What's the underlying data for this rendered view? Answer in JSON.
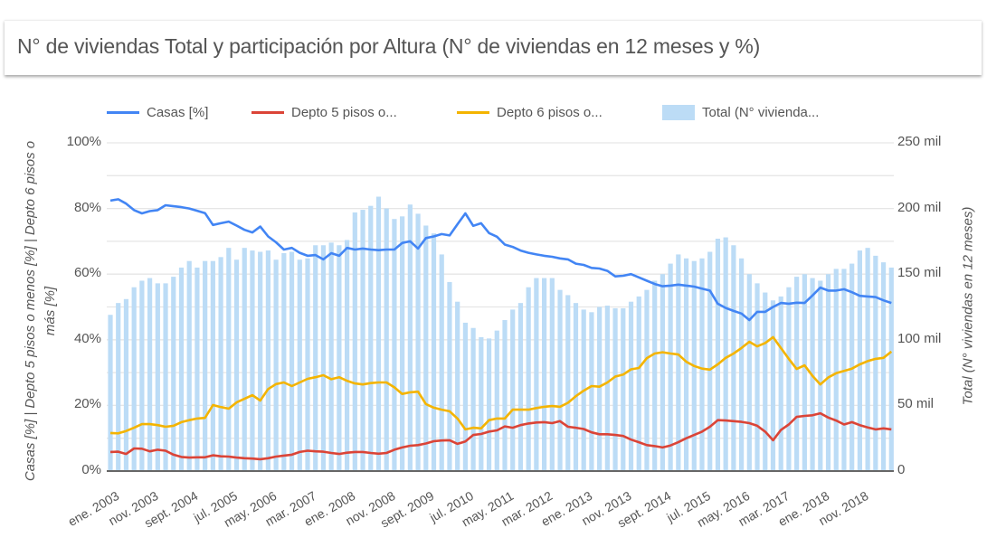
{
  "header": {
    "title": "N° de viviendas Total y participación por Altura  (N° de viviendas en 12 meses y %)"
  },
  "legend": [
    {
      "label": "Casas [%]",
      "color": "#4285f4",
      "kind": "line"
    },
    {
      "label": "Depto 5 pisos o...",
      "color": "#db4437",
      "kind": "line"
    },
    {
      "label": "Depto 6 pisos o...",
      "color": "#f4b400",
      "kind": "line"
    },
    {
      "label": "Total (N° vivienda...",
      "color": "#bcdcf6",
      "kind": "bar"
    }
  ],
  "chart_data": {
    "type": "bar+line",
    "title": "N° de viviendas Total y participación por Altura  (N° de viviendas en 12 meses y %)",
    "ylabel_left": "Casas [%] | Depto 5 pisos o menos [%] | Depto 6 pisos o más [%]",
    "ylabel_right": "Total (N° viviendas en 12 meses)",
    "ylim_left": [
      0,
      100
    ],
    "ylim_right": [
      0,
      250000
    ],
    "yticks_left": [
      "0%",
      "20%",
      "40%",
      "60%",
      "80%",
      "100%"
    ],
    "yticks_right": [
      "0",
      "50 mil",
      "100 mil",
      "150 mil",
      "200 mil",
      "250 mil"
    ],
    "xticks": [
      "ene. 2003",
      "nov. 2003",
      "sept. 2004",
      "jul. 2005",
      "may. 2006",
      "mar. 2007",
      "ene. 2008",
      "nov. 2008",
      "sept. 2009",
      "jul. 2010",
      "may. 2011",
      "mar. 2012",
      "ene. 2013",
      "nov. 2013",
      "sept. 2014",
      "jul. 2015",
      "may. 2016",
      "mar. 2017",
      "ene. 2018",
      "nov. 2018"
    ],
    "grid": true,
    "legend_position": "top",
    "x": [
      "2003-01",
      "2003-03",
      "2003-05",
      "2003-07",
      "2003-09",
      "2003-11",
      "2004-01",
      "2004-03",
      "2004-05",
      "2004-07",
      "2004-09",
      "2004-11",
      "2005-01",
      "2005-03",
      "2005-05",
      "2005-07",
      "2005-09",
      "2005-11",
      "2006-01",
      "2006-03",
      "2006-05",
      "2006-07",
      "2006-09",
      "2006-11",
      "2007-01",
      "2007-03",
      "2007-05",
      "2007-07",
      "2007-09",
      "2007-11",
      "2008-01",
      "2008-03",
      "2008-05",
      "2008-07",
      "2008-09",
      "2008-11",
      "2009-01",
      "2009-03",
      "2009-05",
      "2009-07",
      "2009-09",
      "2009-11",
      "2010-01",
      "2010-03",
      "2010-05",
      "2010-07",
      "2010-09",
      "2010-11",
      "2011-01",
      "2011-03",
      "2011-05",
      "2011-07",
      "2011-09",
      "2011-11",
      "2012-01",
      "2012-03",
      "2012-05",
      "2012-07",
      "2012-09",
      "2012-11",
      "2013-01",
      "2013-03",
      "2013-05",
      "2013-07",
      "2013-09",
      "2013-11",
      "2014-01",
      "2014-03",
      "2014-05",
      "2014-07",
      "2014-09",
      "2014-11",
      "2015-01",
      "2015-03",
      "2015-05",
      "2015-07",
      "2015-09",
      "2015-11",
      "2016-01",
      "2016-03",
      "2016-05",
      "2016-07",
      "2016-09",
      "2016-11",
      "2017-01",
      "2017-03",
      "2017-05",
      "2017-07",
      "2017-09",
      "2017-11",
      "2018-01",
      "2018-03",
      "2018-05",
      "2018-07",
      "2018-09",
      "2018-11",
      "2019-01",
      "2019-03",
      "2019-05",
      "2019-07"
    ],
    "series": [
      {
        "name": "Casas [%]",
        "axis": "left",
        "type": "line",
        "color": "#4285f4",
        "values": [
          82.4,
          82.8,
          81.5,
          79.5,
          78.5,
          79.2,
          79.5,
          81,
          80.7,
          80.4,
          80,
          79.3,
          78.6,
          75,
          75.5,
          76,
          74.8,
          73.5,
          72.7,
          74.5,
          71.5,
          69.7,
          67.5,
          68,
          66.5,
          65.6,
          65.8,
          64.5,
          66.4,
          65.6,
          68,
          67.5,
          67.8,
          67.5,
          67.3,
          67.5,
          67.5,
          69.5,
          70,
          67.8,
          71,
          71.5,
          72.2,
          71.8,
          75.2,
          78.5,
          74.7,
          75.5,
          72.5,
          71.4,
          69,
          68.3,
          67.2,
          66.5,
          66,
          65.6,
          65.3,
          64.8,
          64.5,
          63.2,
          62.8,
          61.9,
          61.7,
          61,
          59.3,
          59.5,
          60,
          59,
          58,
          57,
          56.3,
          56.5,
          56.8,
          56.5,
          56.2,
          55.6,
          55,
          51,
          49.7,
          48.8,
          48,
          46,
          48.5,
          48.5,
          50,
          51.2,
          51,
          51.3,
          51.2,
          53.5,
          55.9,
          55,
          55,
          55.4,
          54.5,
          53.4,
          53.2,
          53,
          52,
          51.2
        ]
      },
      {
        "name": "Depto 5 pisos o menos [%]",
        "axis": "left",
        "type": "line",
        "color": "#db4437",
        "values": [
          5.8,
          5.9,
          5.2,
          6.9,
          6.8,
          6,
          6.5,
          6.2,
          5,
          4.3,
          4.1,
          4.2,
          4.2,
          4.8,
          4.5,
          4.4,
          4.1,
          3.9,
          3.8,
          3.6,
          3.9,
          4.4,
          4.7,
          5,
          5.8,
          6.2,
          6,
          5.9,
          5.5,
          5.2,
          5.6,
          5.8,
          5.8,
          5.5,
          5.3,
          5.5,
          6.5,
          7.2,
          7.7,
          7.9,
          8.4,
          9.1,
          9.3,
          9.4,
          8.3,
          9,
          11,
          11.3,
          12,
          12.4,
          13.6,
          13.2,
          14,
          14.5,
          14.8,
          14.9,
          14.6,
          15.2,
          13.5,
          13.2,
          12.8,
          11.8,
          11.2,
          11.2,
          11,
          10.7,
          9.6,
          8.8,
          7.9,
          7.6,
          7.2,
          7.8,
          8.8,
          10,
          11,
          12,
          13.5,
          15.5,
          15.4,
          15.2,
          15,
          14.6,
          13.8,
          12,
          9.4,
          12.5,
          14.2,
          16.5,
          16.8,
          17,
          17.6,
          16.3,
          15.4,
          14.2,
          14.9,
          14,
          13.3,
          12.7,
          13,
          12.7
        ]
      },
      {
        "name": "Depto 6 pisos o más [%]",
        "axis": "left",
        "type": "line",
        "color": "#f4b400",
        "values": [
          11.6,
          11.5,
          12.2,
          13.2,
          14.3,
          14.3,
          14,
          13.5,
          13.8,
          14.9,
          15.5,
          16,
          16.2,
          20.1,
          19.5,
          19,
          20.9,
          22,
          23.1,
          21.5,
          25,
          26.5,
          27,
          25.9,
          27,
          28.1,
          28.6,
          29.2,
          28,
          28.6,
          27.5,
          26.7,
          26.4,
          26.8,
          27,
          27,
          25.5,
          23.5,
          24,
          24.2,
          20.4,
          19.3,
          18.7,
          18.2,
          16,
          12.7,
          13.2,
          13,
          15.5,
          16,
          16,
          18.7,
          18.7,
          18.7,
          19.2,
          19.6,
          19.8,
          19.6,
          20.8,
          22.8,
          24.5,
          25.9,
          25.7,
          27,
          28.8,
          29.4,
          31,
          31.4,
          34.4,
          35.8,
          36.2,
          35.8,
          35.5,
          33.3,
          32,
          31.2,
          30.9,
          32.5,
          34.5,
          35.8,
          37.5,
          39.4,
          38,
          39,
          40.8,
          37.5,
          34.2,
          31.1,
          32.2,
          29,
          26.4,
          28.5,
          29.8,
          30.5,
          31.2,
          32.5,
          33.5,
          34.2,
          34.5,
          36.4
        ]
      },
      {
        "name": "Total (N° viviendas en 12 meses)",
        "axis": "right",
        "type": "bar",
        "color": "#bcdcf6",
        "unit": "mil",
        "values": [
          119,
          128,
          131,
          140,
          145,
          147,
          143,
          143,
          148,
          155,
          160,
          155,
          160,
          160,
          163,
          170,
          161,
          170,
          168,
          167,
          168,
          161,
          166,
          167,
          161,
          162,
          172,
          172,
          174,
          172,
          176,
          197,
          199,
          202,
          209,
          200,
          192,
          194,
          203,
          196,
          187,
          181,
          165,
          144,
          129,
          113,
          109,
          102,
          101,
          107,
          115,
          123,
          128,
          140,
          147,
          147,
          147,
          138,
          134,
          128,
          123,
          121,
          125,
          126,
          124,
          124,
          129,
          133,
          138,
          145,
          150,
          158,
          165,
          162,
          160,
          162,
          167,
          177,
          178,
          172,
          162,
          150,
          143,
          136,
          130,
          133,
          140,
          148,
          150,
          147,
          145,
          150,
          154,
          154,
          158,
          168,
          170,
          164,
          159,
          155
        ]
      }
    ]
  }
}
